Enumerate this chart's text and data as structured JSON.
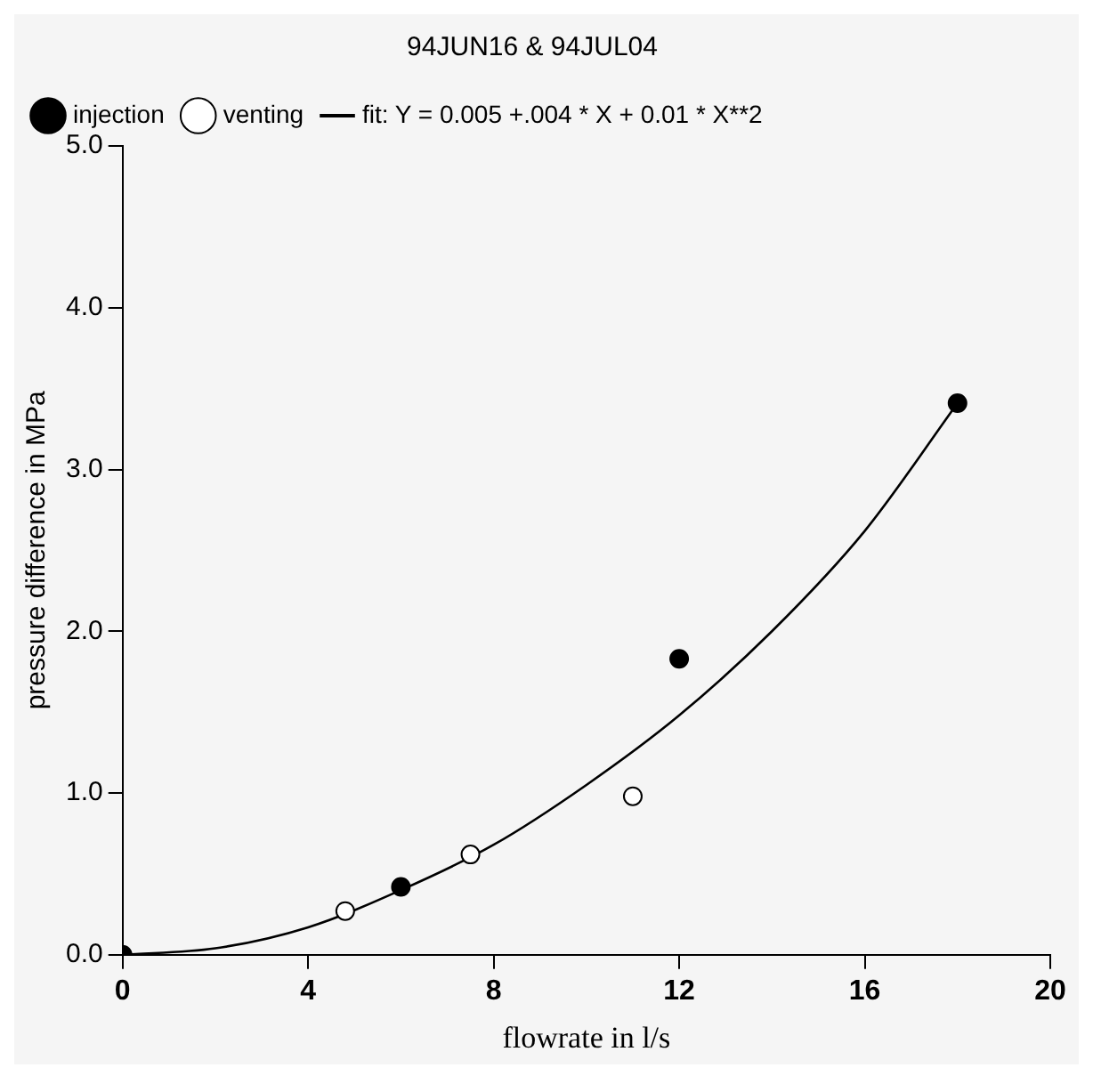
{
  "chart_data": {
    "type": "scatter",
    "title": "94JUN16 & 94JUL04",
    "xlabel": "flowrate in l/s",
    "ylabel": "pressure difference in MPa",
    "xlim": [
      0,
      20
    ],
    "xticks": [
      0,
      4,
      8,
      12,
      16,
      20
    ],
    "ylim": [
      0,
      5
    ],
    "yticks": [
      {
        "value": 0,
        "label": "0.0"
      },
      {
        "value": 1,
        "label": "1.0"
      },
      {
        "value": 2,
        "label": "2.0"
      },
      {
        "value": 3,
        "label": "3.0"
      },
      {
        "value": 4,
        "label": "4.0"
      },
      {
        "value": 5,
        "label": "5.0"
      }
    ],
    "grid": false,
    "legend": "top left",
    "marker": "circle",
    "series": [
      {
        "name": "injection",
        "color": "#000000",
        "x": [
          0,
          6,
          12,
          18
        ],
        "values": [
          0,
          0.42,
          1.83,
          3.41
        ]
      },
      {
        "name": "venting",
        "color": "#ffffff",
        "x": [
          4.8,
          7.5,
          11
        ],
        "values": [
          0.27,
          0.62,
          0.98
        ]
      },
      {
        "name": "fit: Y = 0.005 +.004 * X + 0.01 * X**2",
        "type": "line",
        "color": "#000000",
        "marker": "none",
        "line_style": "solid",
        "x": [
          0,
          2,
          4,
          6,
          8,
          10,
          12,
          14,
          16,
          18
        ],
        "values": [
          0,
          0.04,
          0.17,
          0.4,
          0.68,
          1.05,
          1.48,
          2.0,
          2.62,
          3.41
        ]
      }
    ]
  }
}
